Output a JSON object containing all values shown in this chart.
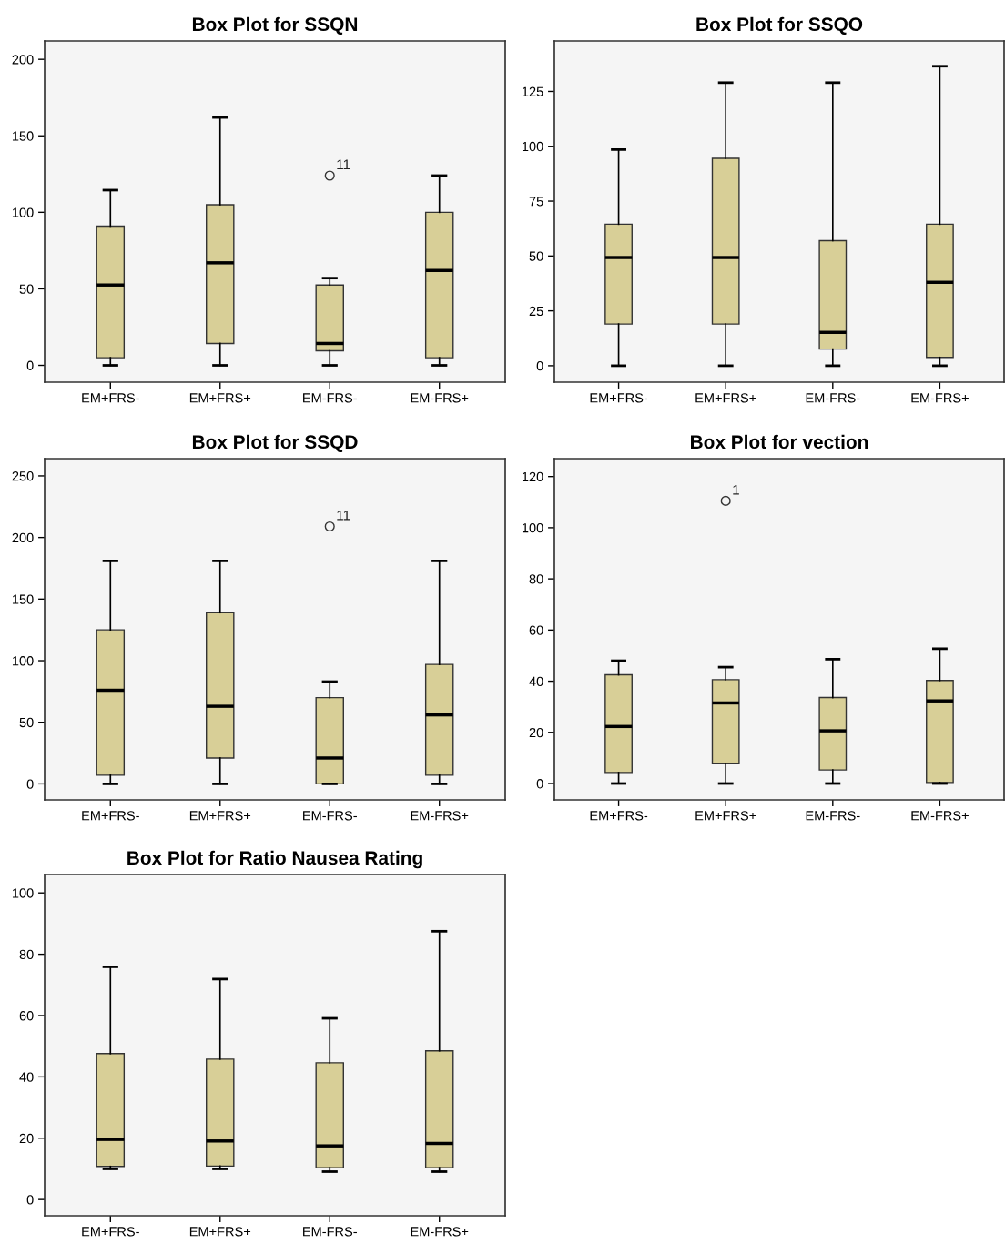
{
  "chart_data": [
    {
      "type": "box",
      "title": "Box Plot for SSQN",
      "categories": [
        "EM+FRS-",
        "EM+FRS+",
        "EM-FRS-",
        "EM-FRS+"
      ],
      "ylim": [
        -11,
        212
      ],
      "yticks": [
        0,
        50,
        100,
        150,
        200
      ],
      "series": [
        {
          "color": "#d8cf97",
          "boxes": [
            {
              "low": 0,
              "q1": 5,
              "median": 52.5,
              "q3": 91,
              "high": 114.5
            },
            {
              "low": 0,
              "q1": 14.3,
              "median": 67,
              "q3": 105,
              "high": 162
            },
            {
              "low": 0,
              "q1": 9.5,
              "median": 14.3,
              "q3": 52.5,
              "high": 57,
              "outliers": [
                124
              ]
            },
            {
              "low": 0,
              "q1": 5,
              "median": 62,
              "q3": 100,
              "high": 124
            }
          ]
        }
      ],
      "annotations": [
        "11"
      ]
    },
    {
      "type": "box",
      "title": "Box Plot for SSQO",
      "categories": [
        "EM+FRS-",
        "EM+FRS+",
        "EM-FRS-",
        "EM-FRS+"
      ],
      "ylim": [
        -7.5,
        148
      ],
      "yticks": [
        0,
        25,
        50,
        75,
        100,
        125
      ],
      "series": [
        {
          "color": "#d8cf97",
          "boxes": [
            {
              "low": 0,
              "q1": 19,
              "median": 49.3,
              "q3": 64.5,
              "high": 98.5
            },
            {
              "low": 0,
              "q1": 19,
              "median": 49.3,
              "q3": 94.5,
              "high": 129
            },
            {
              "low": 0,
              "q1": 7.6,
              "median": 15.2,
              "q3": 57,
              "high": 129
            },
            {
              "low": 0,
              "q1": 3.8,
              "median": 38,
              "q3": 64.5,
              "high": 136.5
            }
          ]
        }
      ]
    },
    {
      "type": "box",
      "title": "Box Plot for SSQD",
      "categories": [
        "EM+FRS-",
        "EM+FRS+",
        "EM-FRS-",
        "EM-FRS+"
      ],
      "ylim": [
        -13,
        264
      ],
      "yticks": [
        0,
        50,
        100,
        150,
        200,
        250
      ],
      "series": [
        {
          "color": "#d8cf97",
          "boxes": [
            {
              "low": 0,
              "q1": 7,
              "median": 76,
              "q3": 125,
              "high": 181
            },
            {
              "low": 0,
              "q1": 21,
              "median": 63,
              "q3": 139,
              "high": 181
            },
            {
              "low": 0,
              "q1": 0,
              "median": 21,
              "q3": 70,
              "high": 83,
              "outliers": [
                209
              ]
            },
            {
              "low": 0,
              "q1": 7,
              "median": 56,
              "q3": 97,
              "high": 181
            }
          ]
        }
      ],
      "annotations": [
        "11"
      ]
    },
    {
      "type": "box",
      "title": "Box Plot for vection",
      "categories": [
        "EM+FRS-",
        "EM+FRS+",
        "EM-FRS-",
        "EM-FRS+"
      ],
      "ylim": [
        -6.4,
        127
      ],
      "yticks": [
        0,
        20,
        40,
        60,
        80,
        100,
        120
      ],
      "series": [
        {
          "color": "#d8cf97",
          "boxes": [
            {
              "low": 0,
              "q1": 4.3,
              "median": 22.3,
              "q3": 42.5,
              "high": 48
            },
            {
              "low": 0,
              "q1": 7.9,
              "median": 31.5,
              "q3": 40.6,
              "high": 45.5,
              "outliers": [
                110.5
              ]
            },
            {
              "low": 0,
              "q1": 5.3,
              "median": 20.6,
              "q3": 33.6,
              "high": 48.6
            },
            {
              "low": 0,
              "q1": 0.4,
              "median": 32.3,
              "q3": 40.3,
              "high": 52.7
            }
          ]
        }
      ],
      "annotations": [
        "1"
      ]
    },
    {
      "type": "box",
      "title": "Box Plot for Ratio Nausea Rating",
      "categories": [
        "EM+FRS-",
        "EM+FRS+",
        "EM-FRS-",
        "EM-FRS+"
      ],
      "ylim": [
        -5.3,
        106
      ],
      "yticks": [
        0,
        20,
        40,
        60,
        80,
        100
      ],
      "series": [
        {
          "color": "#d8cf97",
          "boxes": [
            {
              "low": 10,
              "q1": 10.8,
              "median": 19.6,
              "q3": 47.6,
              "high": 75.9
            },
            {
              "low": 10,
              "q1": 10.9,
              "median": 19.1,
              "q3": 45.8,
              "high": 71.9
            },
            {
              "low": 9.1,
              "q1": 10.4,
              "median": 17.5,
              "q3": 44.6,
              "high": 59.1
            },
            {
              "low": 9.1,
              "q1": 10.4,
              "median": 18.3,
              "q3": 48.5,
              "high": 87.5
            }
          ]
        }
      ]
    }
  ]
}
